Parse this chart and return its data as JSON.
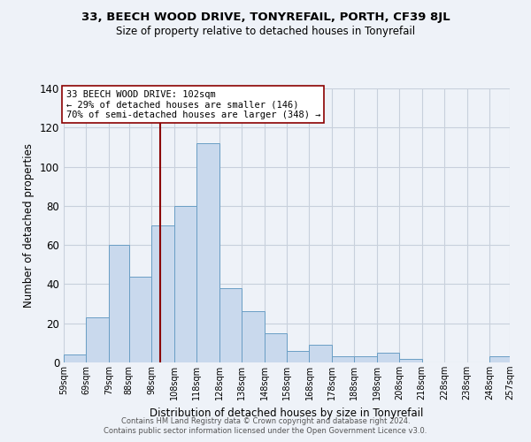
{
  "title1": "33, BEECH WOOD DRIVE, TONYREFAIL, PORTH, CF39 8JL",
  "title2": "Size of property relative to detached houses in Tonyrefail",
  "xlabel": "Distribution of detached houses by size in Tonyrefail",
  "ylabel": "Number of detached properties",
  "bin_edges": [
    59,
    69,
    79,
    88,
    98,
    108,
    118,
    128,
    138,
    148,
    158,
    168,
    178,
    188,
    198,
    208,
    218,
    228,
    238,
    248,
    257
  ],
  "bin_labels": [
    "59sqm",
    "69sqm",
    "79sqm",
    "88sqm",
    "98sqm",
    "108sqm",
    "118sqm",
    "128sqm",
    "138sqm",
    "148sqm",
    "158sqm",
    "168sqm",
    "178sqm",
    "188sqm",
    "198sqm",
    "208sqm",
    "218sqm",
    "228sqm",
    "238sqm",
    "248sqm",
    "257sqm"
  ],
  "counts": [
    4,
    23,
    60,
    44,
    70,
    80,
    112,
    38,
    26,
    15,
    6,
    9,
    3,
    3,
    5,
    2,
    0,
    0,
    0,
    3
  ],
  "bar_facecolor": "#c9d9ed",
  "bar_edgecolor": "#6a9ec5",
  "vline_x": 102,
  "vline_color": "#8b0000",
  "annotation_line1": "33 BEECH WOOD DRIVE: 102sqm",
  "annotation_line2": "← 29% of detached houses are smaller (146)",
  "annotation_line3": "70% of semi-detached houses are larger (348) →",
  "annotation_box_edgecolor": "#8b0000",
  "annotation_box_facecolor": "#ffffff",
  "annotation_fontsize": 7.5,
  "grid_color": "#c8d0dc",
  "background_color": "#eef2f8",
  "footer1": "Contains HM Land Registry data © Crown copyright and database right 2024.",
  "footer2": "Contains public sector information licensed under the Open Government Licence v3.0.",
  "ylim": [
    0,
    140
  ],
  "yticks": [
    0,
    20,
    40,
    60,
    80,
    100,
    120,
    140
  ]
}
